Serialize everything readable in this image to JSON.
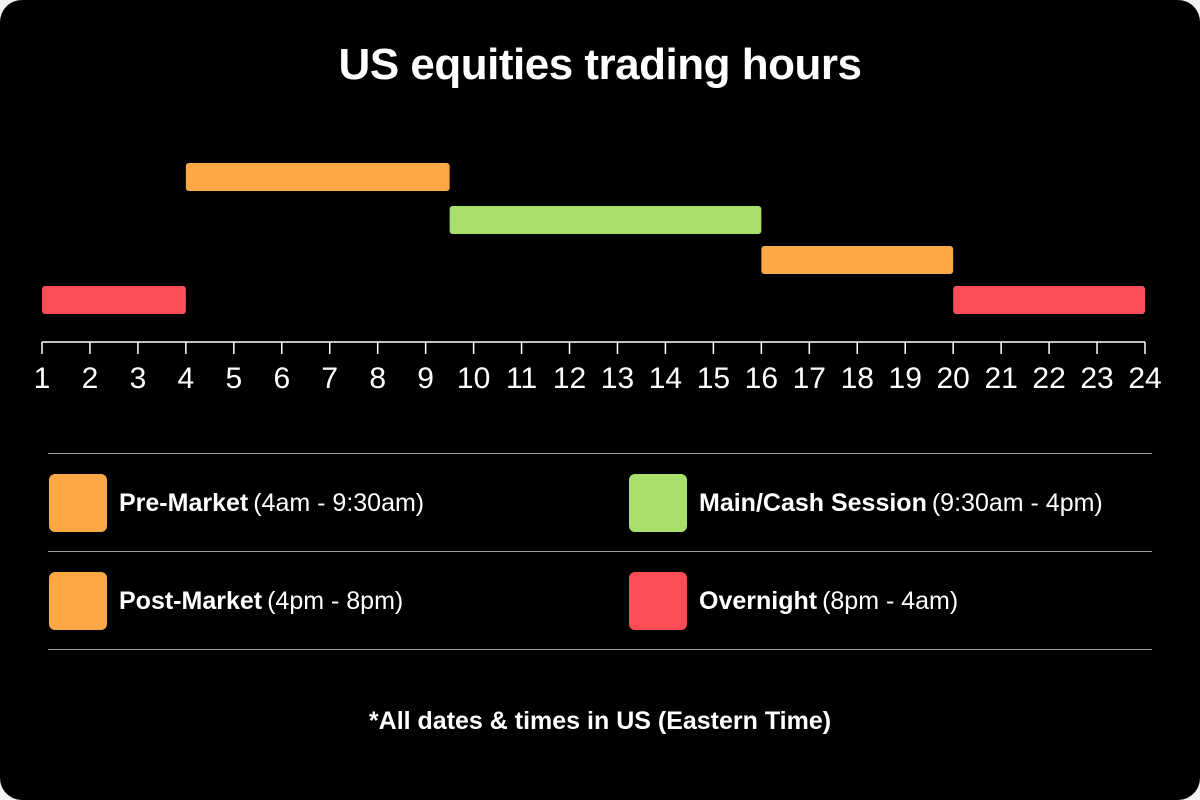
{
  "colors": {
    "background": "#000000",
    "pre_post": "#fca847",
    "main": "#a8e06b",
    "overnight": "#ff4d57",
    "axis": "#ffffff",
    "rule": "#9a9a9a"
  },
  "chart_data": {
    "type": "gantt",
    "title": "US equities trading hours",
    "x_axis": {
      "ticks": [
        1,
        2,
        3,
        4,
        5,
        6,
        7,
        8,
        9,
        10,
        11,
        12,
        13,
        14,
        15,
        16,
        17,
        18,
        19,
        20,
        21,
        22,
        23,
        24
      ],
      "range": [
        1,
        24
      ]
    },
    "bars": [
      {
        "session": "Pre-Market",
        "start": 4,
        "end": 9.5,
        "row": 0,
        "color": "#fca847"
      },
      {
        "session": "Main/Cash Session",
        "start": 9.5,
        "end": 16,
        "row": 1,
        "color": "#a8e06b"
      },
      {
        "session": "Post-Market",
        "start": 16,
        "end": 20,
        "row": 2,
        "color": "#fca847"
      },
      {
        "session": "Overnight",
        "start": 1,
        "end": 4,
        "row": 3,
        "color": "#ff4d57"
      },
      {
        "session": "Overnight",
        "start": 20,
        "end": 24,
        "row": 3,
        "color": "#ff4d57"
      }
    ],
    "grid": false
  },
  "legend": [
    {
      "name": "Pre-Market",
      "range": "(4am - 9:30am)",
      "color": "#fca847"
    },
    {
      "name": "Main/Cash Session",
      "range": "(9:30am - 4pm)",
      "color": "#a8e06b"
    },
    {
      "name": "Post-Market",
      "range": "(4pm - 8pm)",
      "color": "#fca847"
    },
    {
      "name": "Overnight",
      "range": "(8pm - 4am)",
      "color": "#ff4d57"
    }
  ],
  "footnote": "*All dates & times in US (Eastern Time)"
}
